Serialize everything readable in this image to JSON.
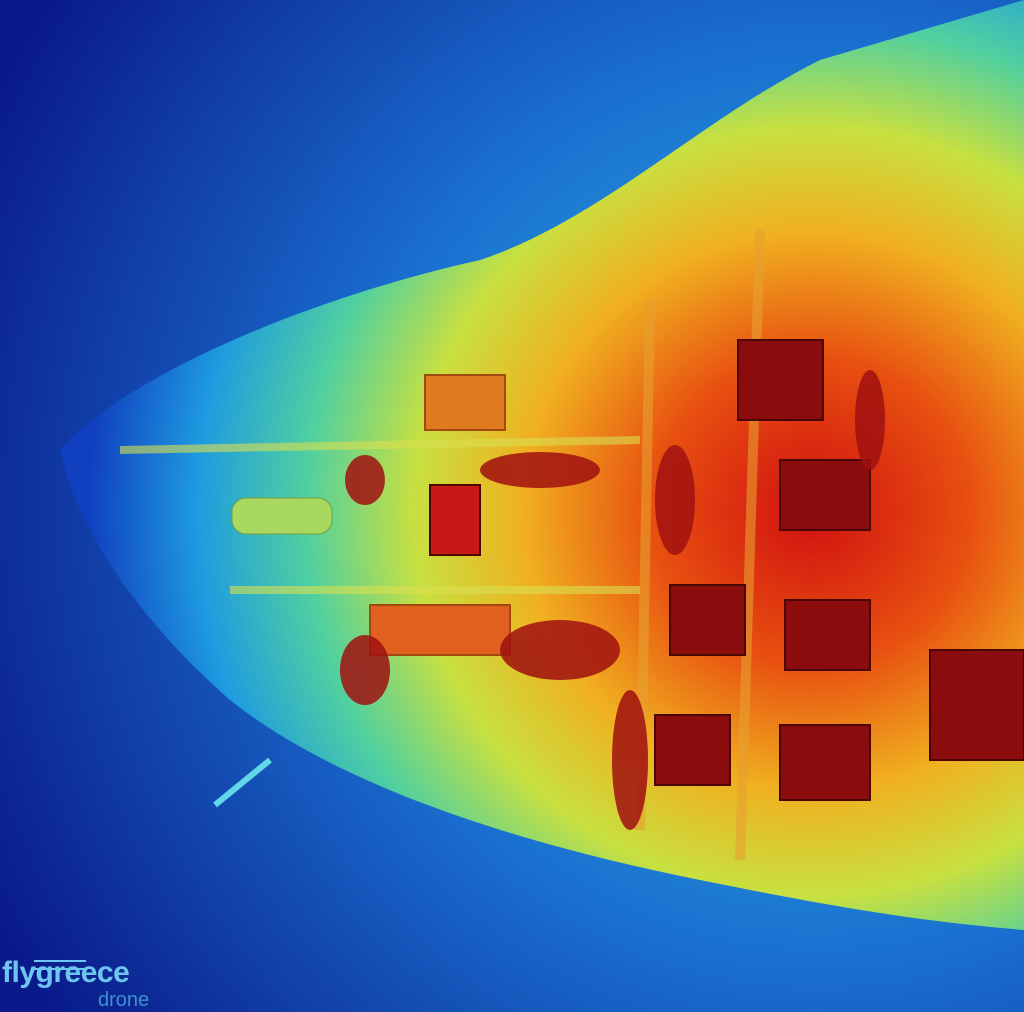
{
  "image": {
    "type": "elevation-map",
    "description_colors": {
      "low": "#0b1f9a",
      "mid_low": "#1e9be0",
      "mid": "#b8e04a",
      "mid_high": "#f0a020",
      "high": "#c01010",
      "peak": "#6a0a0a"
    }
  },
  "watermark": {
    "brand": "flygreece",
    "sub": "drone"
  }
}
